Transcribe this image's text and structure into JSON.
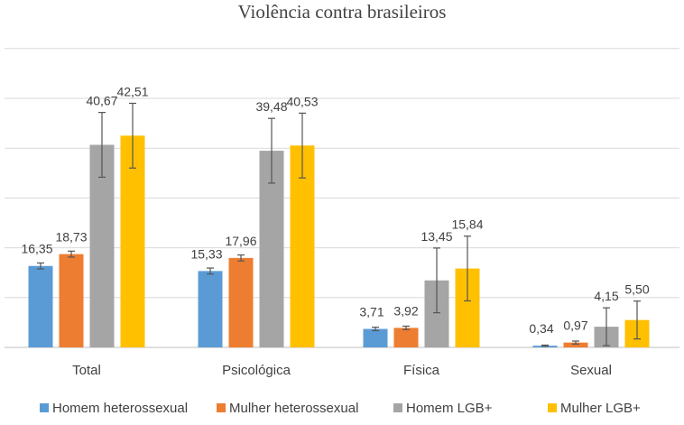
{
  "chart_data": {
    "type": "bar",
    "title": "Violência contra brasileiros",
    "categories": [
      "Total",
      "Psicológica",
      "Física",
      "Sexual"
    ],
    "series": [
      {
        "name": "Homem heterossexual",
        "color": "#5b9bd5",
        "values": [
          16.35,
          15.33,
          3.71,
          0.34
        ],
        "labels": [
          "16,35",
          "15,33",
          "3,71",
          "0,34"
        ],
        "error": [
          0.6,
          0.6,
          0.35,
          0.12
        ]
      },
      {
        "name": "Mulher heterossexual",
        "color": "#ed7d31",
        "values": [
          18.73,
          17.96,
          3.92,
          0.97
        ],
        "labels": [
          "18,73",
          "17,96",
          "3,92",
          "0,97"
        ],
        "error": [
          0.6,
          0.6,
          0.35,
          0.3
        ]
      },
      {
        "name": "Homem LGB+",
        "color": "#a5a5a5",
        "values": [
          40.67,
          39.48,
          13.45,
          4.15
        ],
        "labels": [
          "40,67",
          "39,48",
          "13,45",
          "4,15"
        ],
        "error": [
          6.5,
          6.5,
          6.5,
          3.8
        ]
      },
      {
        "name": "Mulher LGB+",
        "color": "#ffc000",
        "values": [
          42.51,
          40.53,
          15.84,
          5.5
        ],
        "labels": [
          "42,51",
          "40,53",
          "15,84",
          "5,50"
        ],
        "error": [
          6.5,
          6.5,
          6.5,
          3.8
        ]
      }
    ],
    "ylim": [
      0,
      60
    ],
    "ygrid_step": 10,
    "grid": true,
    "legend": "bottom",
    "xlabel": "",
    "ylabel": ""
  }
}
